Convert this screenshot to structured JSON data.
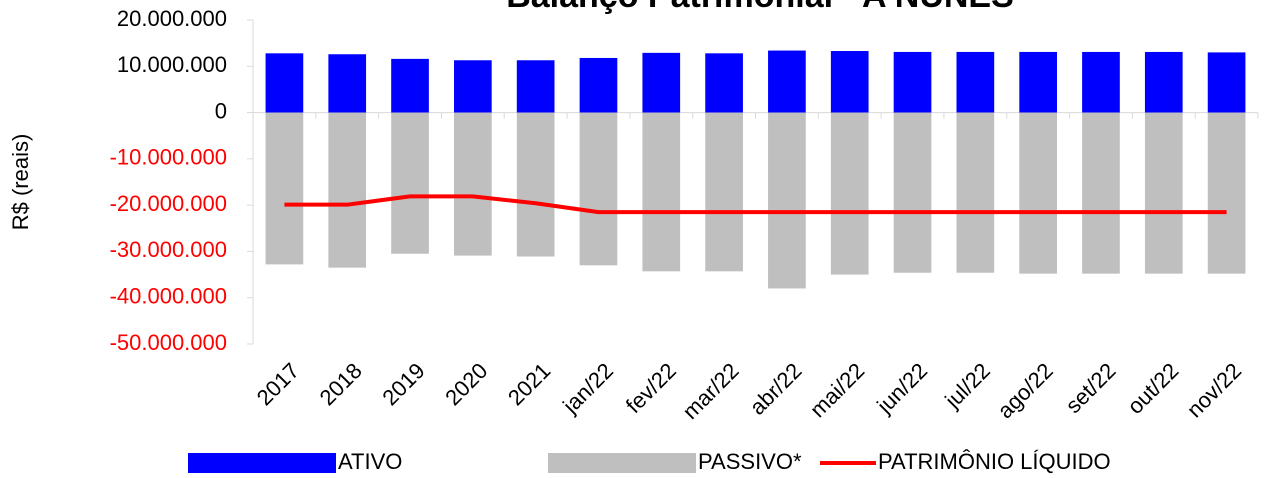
{
  "chart_data": {
    "type": "bar-line",
    "title": "Balanço Patrimonial - A NUNES",
    "y_label": "R$ (reais)",
    "categories": [
      "2017",
      "2018",
      "2019",
      "2020",
      "2021",
      "jan/22",
      "fev/22",
      "mar/22",
      "abr/22",
      "mai/22",
      "jun/22",
      "jul/22",
      "ago/22",
      "set/22",
      "out/22",
      "nov/22"
    ],
    "series": [
      {
        "name": "ATIVO",
        "kind": "bar",
        "color": "#0000ff",
        "values": [
          12800000,
          12600000,
          11600000,
          11300000,
          11300000,
          11800000,
          12900000,
          12800000,
          13400000,
          13300000,
          13100000,
          13100000,
          13100000,
          13100000,
          13100000,
          13000000
        ]
      },
      {
        "name": "PASSIVO*",
        "kind": "bar",
        "color": "#bfbfbf",
        "values": [
          -32800000,
          -33500000,
          -30500000,
          -30900000,
          -31100000,
          -33000000,
          -34300000,
          -34300000,
          -38000000,
          -35000000,
          -34600000,
          -34600000,
          -34800000,
          -34800000,
          -34800000,
          -34800000
        ]
      },
      {
        "name": "PATRIMÔNIO LÍQUIDO",
        "kind": "line",
        "color": "#ff0000",
        "values": [
          -19900000,
          -19900000,
          -18100000,
          -18100000,
          -19600000,
          -21500000,
          -21500000,
          -21500000,
          -21500000,
          -21500000,
          -21500000,
          -21500000,
          -21500000,
          -21500000,
          -21500000,
          -21500000
        ]
      }
    ],
    "ylim": [
      -50000000,
      20000000
    ],
    "yticks": [
      {
        "value": 20000000,
        "label": "20.000.000"
      },
      {
        "value": 10000000,
        "label": "10.000.000"
      },
      {
        "value": 0,
        "label": "0"
      },
      {
        "value": -10000000,
        "label": "-10.000.000"
      },
      {
        "value": -20000000,
        "label": "-20.000.000"
      },
      {
        "value": -30000000,
        "label": "-30.000.000"
      },
      {
        "value": -40000000,
        "label": "-40.000.000"
      },
      {
        "value": -50000000,
        "label": "-50.000.000"
      }
    ],
    "negative_tick_color": "#ff0000"
  }
}
